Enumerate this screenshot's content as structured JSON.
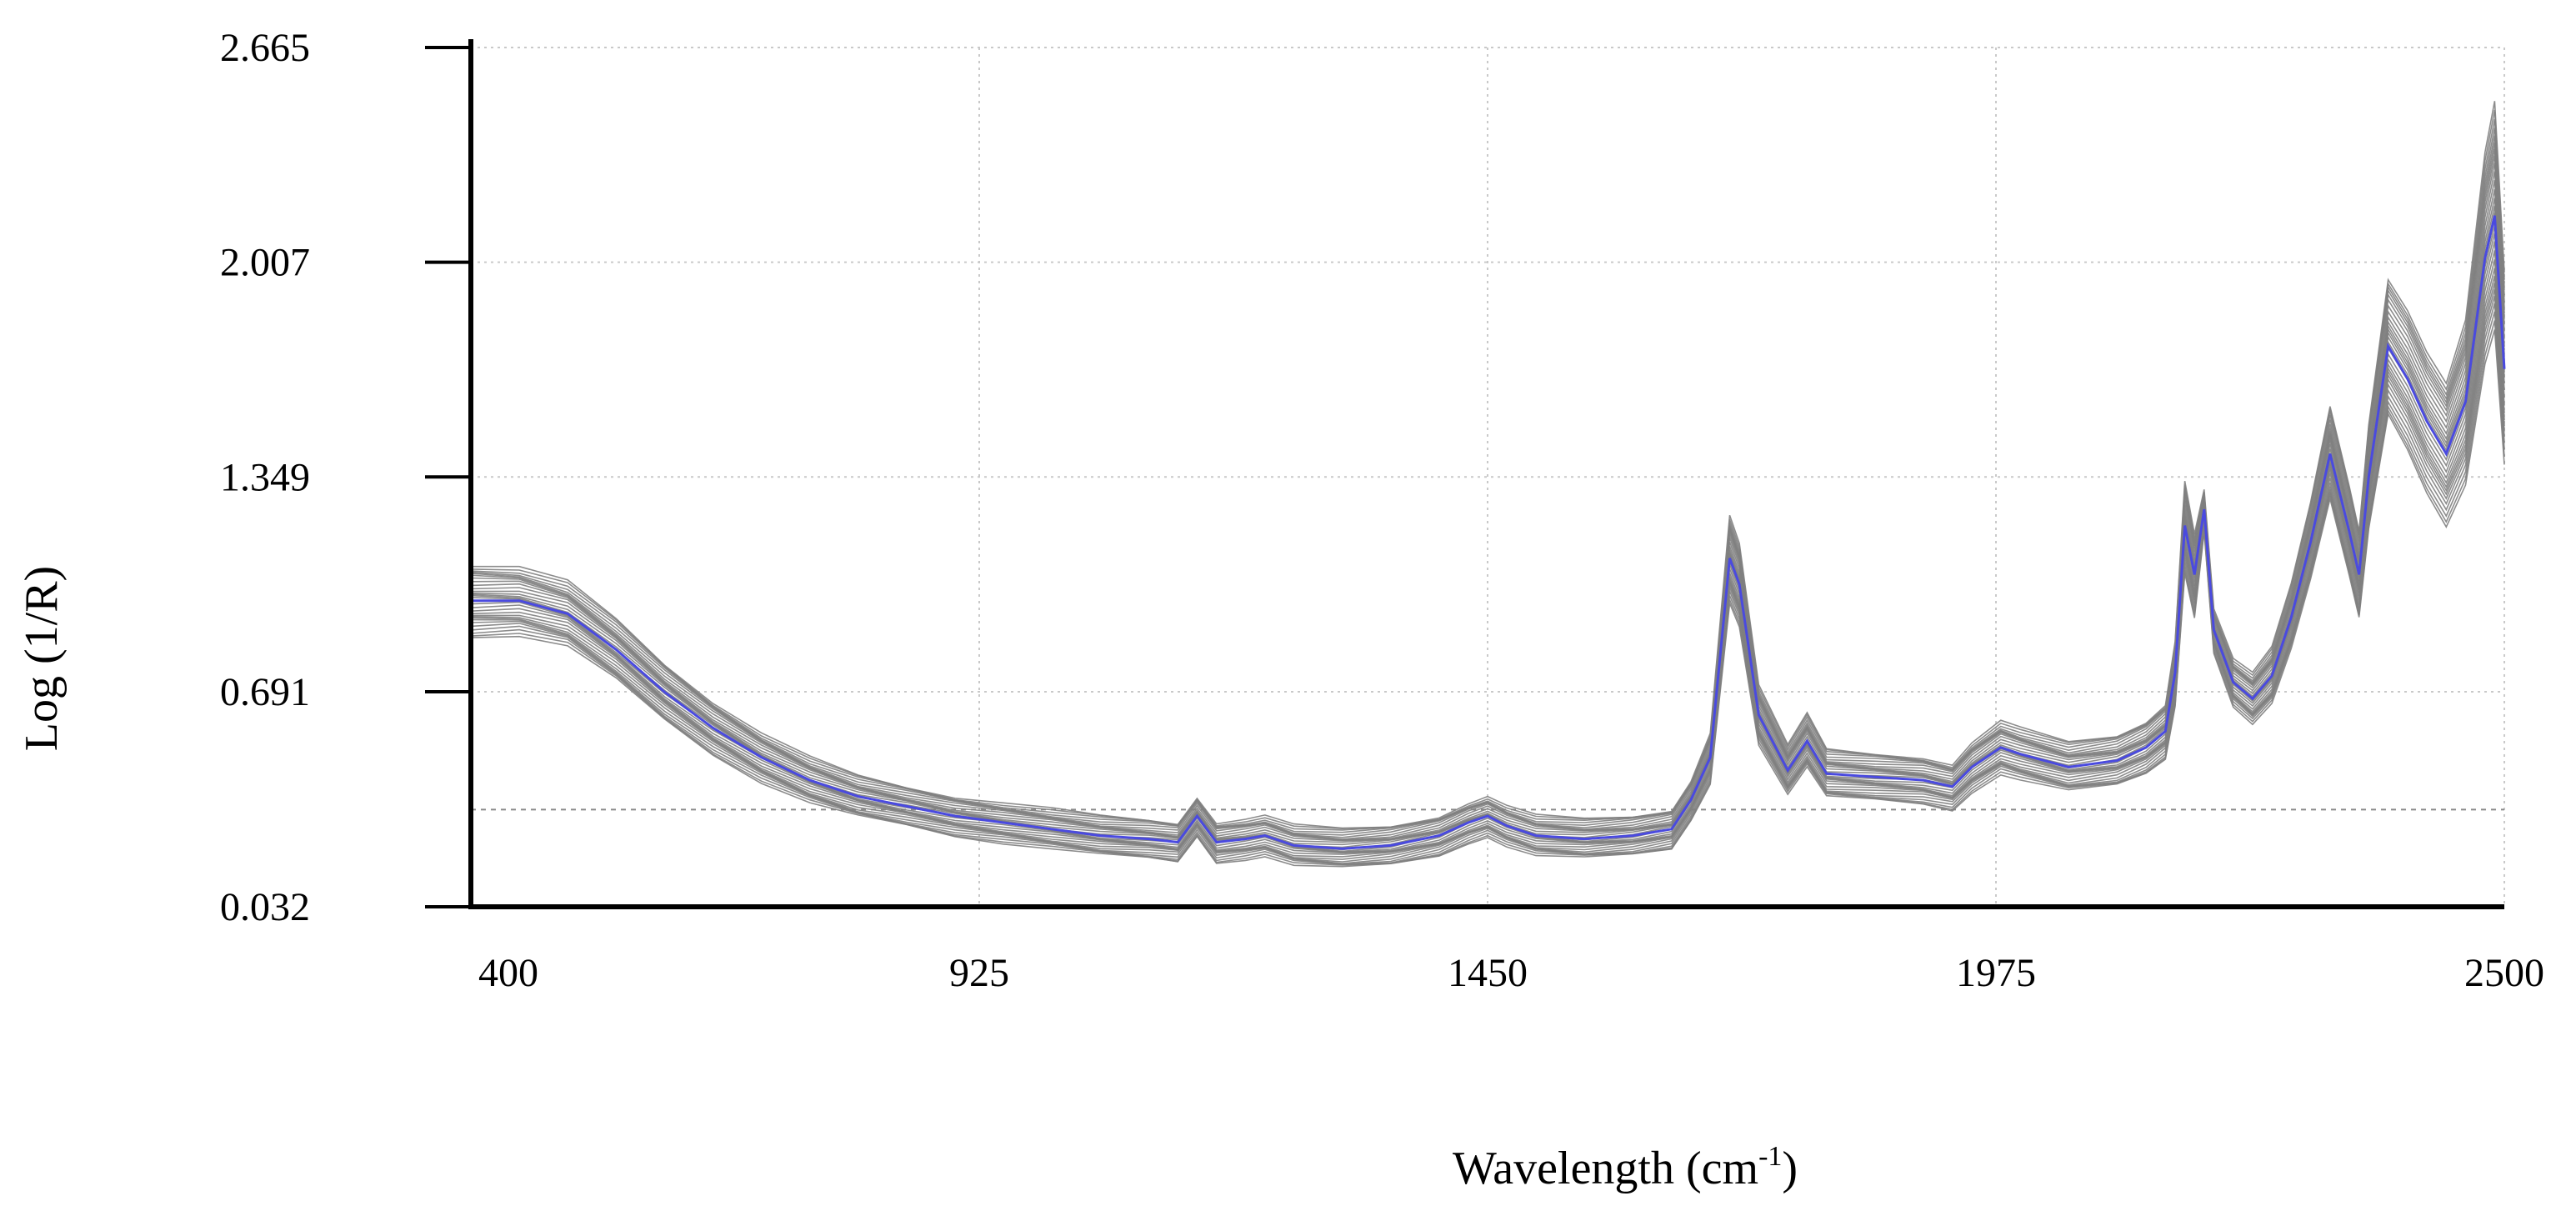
{
  "chart_data": {
    "type": "line",
    "xlabel": "Wavelength (cm",
    "xlabel_sup": "-1",
    "xlabel_close": ")",
    "ylabel": "Log (1/R)",
    "xlim": [
      400,
      2500
    ],
    "ylim": [
      0.032,
      2.665
    ],
    "x_ticks": [
      400,
      925,
      1450,
      1975,
      2500
    ],
    "x_tick_labels": [
      "400",
      "925",
      "1450",
      "1975",
      "2500"
    ],
    "y_ticks": [
      0.032,
      0.691,
      1.349,
      2.007,
      2.665
    ],
    "y_tick_labels": [
      "0.032",
      "0.691",
      "1.349",
      "2.007",
      "2.665"
    ],
    "reference_line_y": 0.33,
    "grid": true,
    "legend": "none",
    "series_count": 30,
    "colors": {
      "samples": "#808080",
      "mean": "#4a4adf",
      "axis": "#000000",
      "grid": "#c9c9c9"
    },
    "mean_spectrum": {
      "x": [
        400,
        450,
        500,
        550,
        600,
        650,
        700,
        750,
        800,
        850,
        900,
        950,
        1000,
        1050,
        1100,
        1130,
        1150,
        1170,
        1200,
        1220,
        1250,
        1300,
        1350,
        1400,
        1430,
        1450,
        1470,
        1500,
        1550,
        1600,
        1640,
        1660,
        1680,
        1700,
        1710,
        1730,
        1760,
        1780,
        1800,
        1850,
        1900,
        1930,
        1950,
        1980,
        2000,
        2050,
        2100,
        2130,
        2150,
        2160,
        2170,
        2180,
        2190,
        2200,
        2220,
        2240,
        2260,
        2280,
        2300,
        2320,
        2340,
        2350,
        2360,
        2380,
        2400,
        2420,
        2440,
        2460,
        2480,
        2490,
        2500
      ],
      "y": [
        0.97,
        0.97,
        0.93,
        0.82,
        0.69,
        0.58,
        0.49,
        0.42,
        0.37,
        0.34,
        0.31,
        0.29,
        0.27,
        0.25,
        0.24,
        0.23,
        0.31,
        0.23,
        0.24,
        0.25,
        0.22,
        0.21,
        0.22,
        0.25,
        0.29,
        0.31,
        0.28,
        0.25,
        0.24,
        0.25,
        0.27,
        0.36,
        0.49,
        1.1,
        1.02,
        0.62,
        0.45,
        0.54,
        0.44,
        0.43,
        0.42,
        0.4,
        0.46,
        0.52,
        0.5,
        0.46,
        0.48,
        0.52,
        0.57,
        0.75,
        1.2,
        1.05,
        1.25,
        0.88,
        0.72,
        0.67,
        0.74,
        0.92,
        1.15,
        1.42,
        1.18,
        1.05,
        1.35,
        1.75,
        1.65,
        1.52,
        1.42,
        1.58,
        2.02,
        2.15,
        1.68
      ]
    }
  }
}
